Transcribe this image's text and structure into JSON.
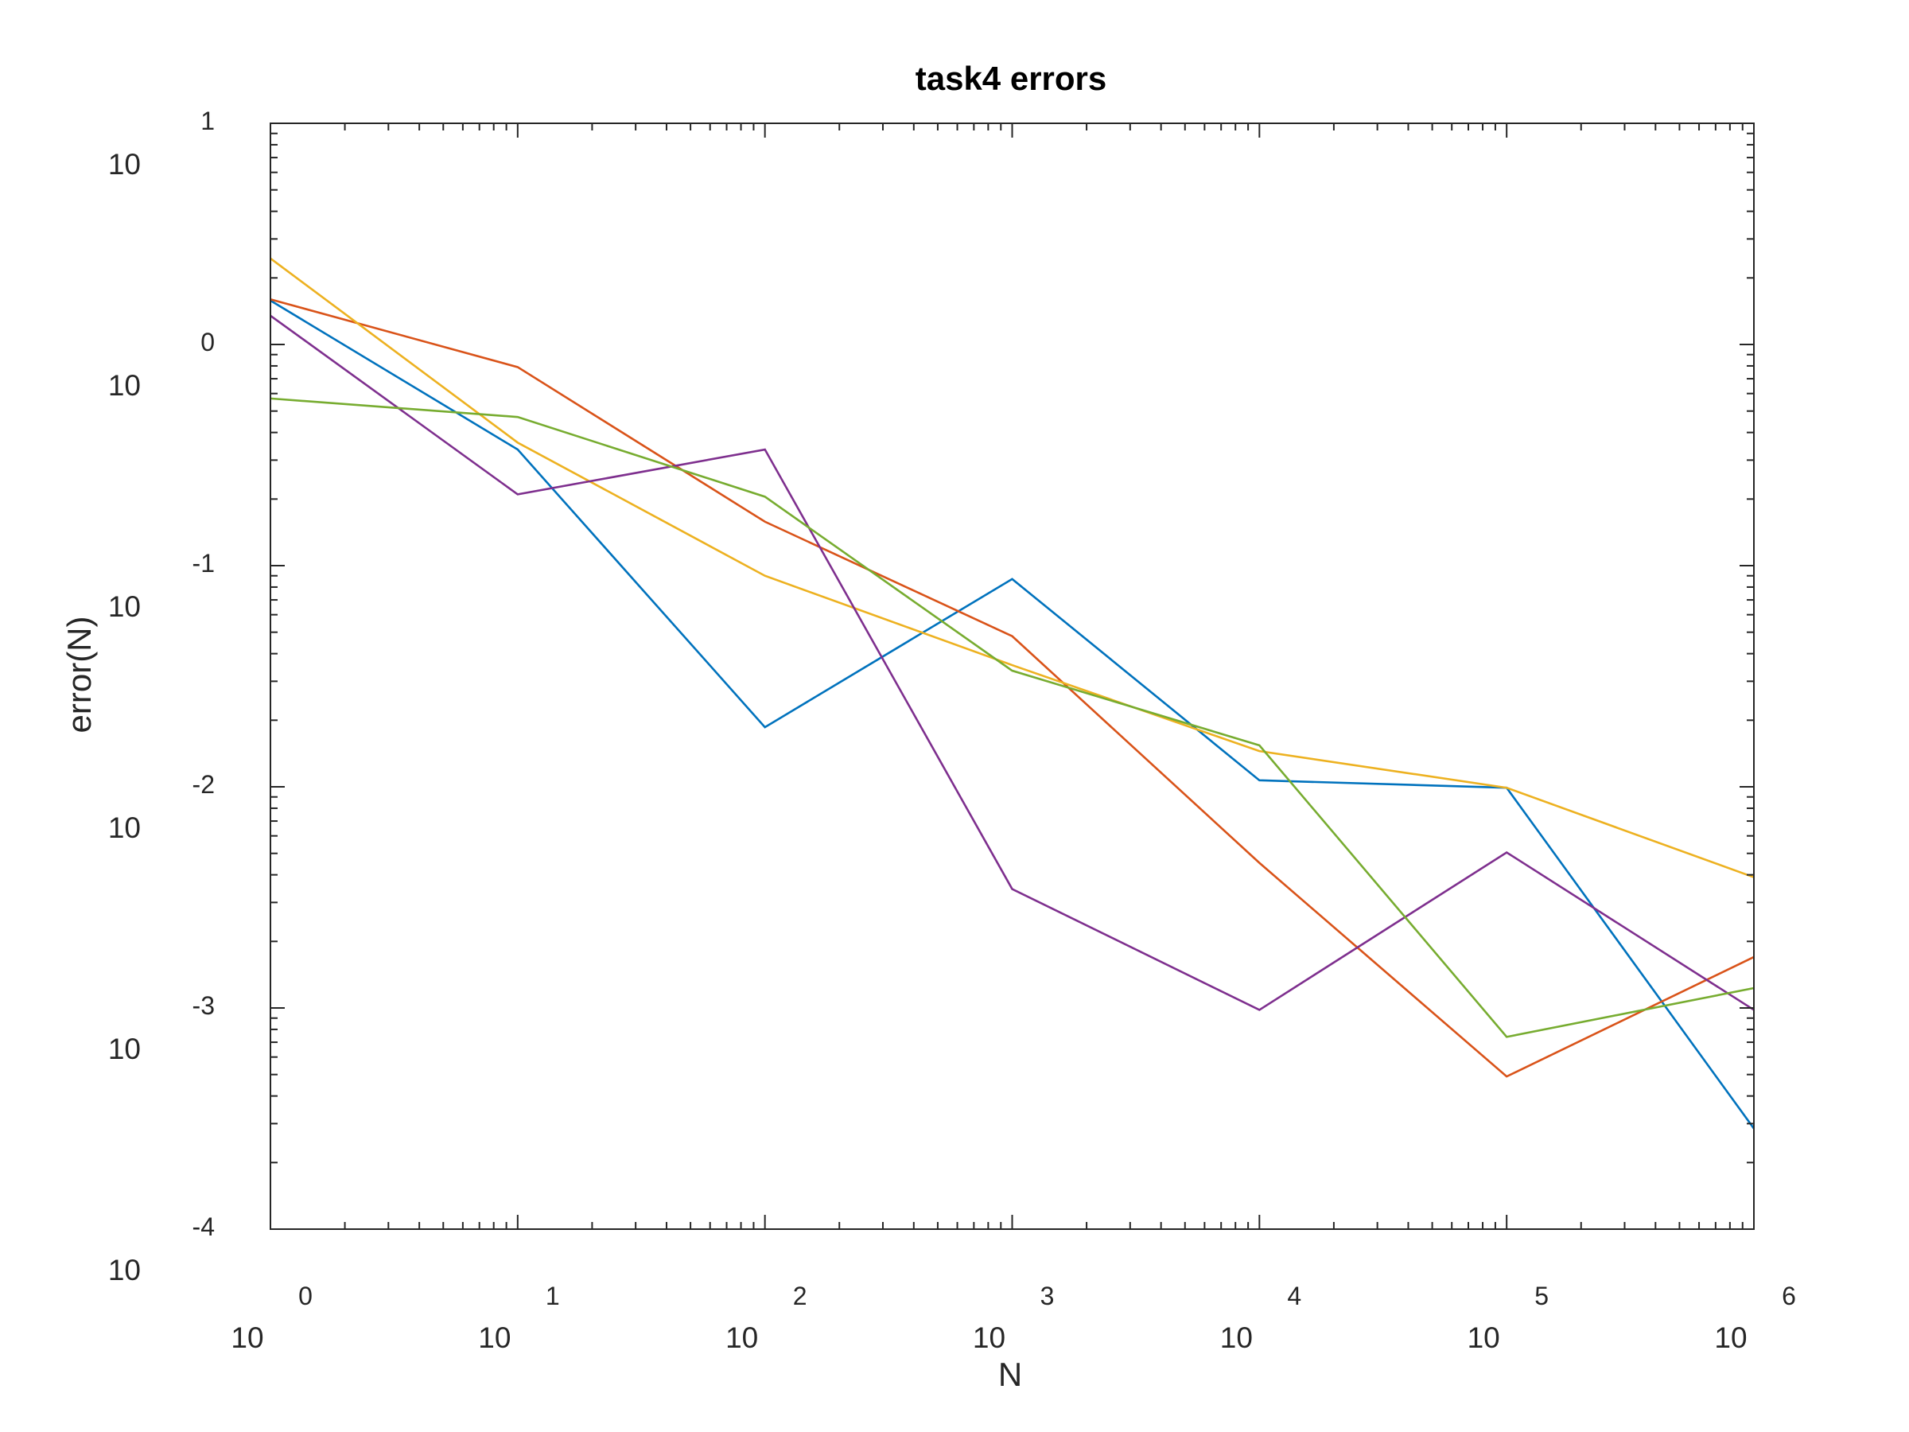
{
  "chart_data": {
    "type": "line",
    "title": "task4 errors",
    "xlabel": "N",
    "ylabel": "error(N)",
    "xscale": "log",
    "yscale": "log",
    "xlim": [
      1,
      1000000
    ],
    "ylim": [
      0.0001,
      10
    ],
    "grid": false,
    "x_ticks": [
      {
        "base": "10",
        "exp": "0"
      },
      {
        "base": "10",
        "exp": "1"
      },
      {
        "base": "10",
        "exp": "2"
      },
      {
        "base": "10",
        "exp": "3"
      },
      {
        "base": "10",
        "exp": "4"
      },
      {
        "base": "10",
        "exp": "5"
      },
      {
        "base": "10",
        "exp": "6"
      }
    ],
    "y_ticks": [
      {
        "base": "10",
        "exp": "-4"
      },
      {
        "base": "10",
        "exp": "-3"
      },
      {
        "base": "10",
        "exp": "-2"
      },
      {
        "base": "10",
        "exp": "-1"
      },
      {
        "base": "10",
        "exp": "0"
      },
      {
        "base": "10",
        "exp": "1"
      }
    ],
    "x": [
      1,
      10,
      100,
      1000,
      10000,
      100000,
      1000000
    ],
    "series": [
      {
        "color": "#0072BD",
        "values": [
          1.58,
          0.335,
          0.0186,
          0.087,
          0.0107,
          0.0099,
          0.000285
        ]
      },
      {
        "color": "#D95319",
        "values": [
          1.6,
          0.79,
          0.158,
          0.048,
          0.00453,
          0.00049,
          0.0017
        ]
      },
      {
        "color": "#EDB120",
        "values": [
          2.45,
          0.36,
          0.09,
          0.0355,
          0.0145,
          0.0099,
          0.0039
        ]
      },
      {
        "color": "#7E2F8E",
        "values": [
          1.35,
          0.21,
          0.335,
          0.00345,
          0.00098,
          0.00505,
          0.00098
        ]
      },
      {
        "color": "#77AC30",
        "values": [
          0.57,
          0.47,
          0.205,
          0.0335,
          0.0154,
          0.00074,
          0.00123
        ]
      }
    ]
  }
}
